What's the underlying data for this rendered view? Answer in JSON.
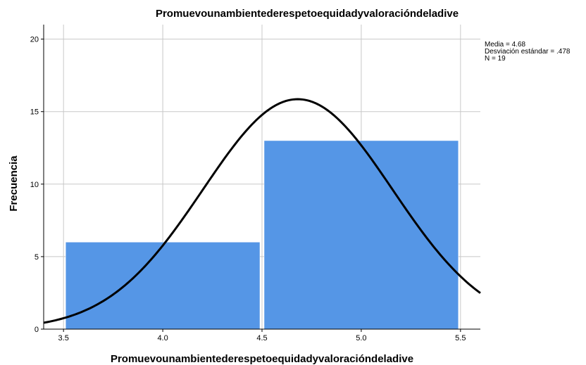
{
  "chart_data": {
    "type": "bar",
    "title": "Promuevounambientederespetoequidadyvaloracióndeladive",
    "xlabel": "Promuevounambientederespetoequidadyvaloracióndeladive",
    "ylabel": "Frecuencia",
    "xlim": [
      3.4,
      5.6
    ],
    "ylim": [
      0,
      21
    ],
    "x_ticks": [
      "3.5",
      "4.0",
      "4.5",
      "5.0",
      "5.5"
    ],
    "y_ticks": [
      "0",
      "5",
      "10",
      "15",
      "20"
    ],
    "bins": [
      {
        "start": 3.5,
        "end": 4.5,
        "value": 6
      },
      {
        "start": 4.5,
        "end": 5.5,
        "value": 13
      }
    ],
    "normal_curve": {
      "mean": 4.68,
      "sd": 0.478,
      "n": 19,
      "bin_width": 1.0
    },
    "grid": true,
    "bar_color": "#5596e6",
    "curve_color": "#000000",
    "stats": {
      "mean_label": "Media = 4.68",
      "sd_label": "Desviación estándar = .478",
      "n_label": "N = 19"
    }
  }
}
